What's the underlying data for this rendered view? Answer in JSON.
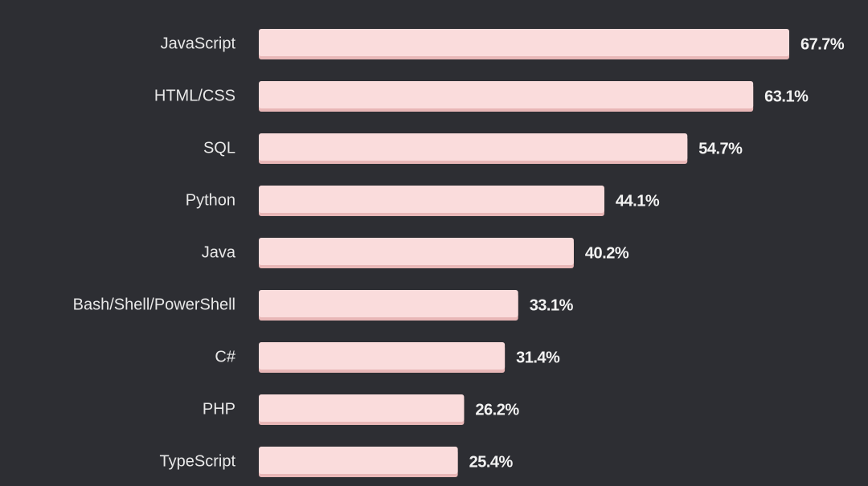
{
  "colors": {
    "background": "#2d2e33",
    "bar_fill": "#fadcdc",
    "bar_shadow": "#e8b7b7"
  },
  "chart_data": {
    "type": "bar",
    "orientation": "horizontal",
    "categories": [
      "JavaScript",
      "HTML/CSS",
      "SQL",
      "Python",
      "Java",
      "Bash/Shell/PowerShell",
      "C#",
      "PHP",
      "TypeScript"
    ],
    "values": [
      67.7,
      63.1,
      54.7,
      44.1,
      40.2,
      33.1,
      31.4,
      26.2,
      25.4
    ],
    "value_labels": [
      "67.7%",
      "63.1%",
      "54.7%",
      "44.1%",
      "40.2%",
      "33.1%",
      "31.4%",
      "26.2%",
      "25.4%"
    ],
    "unit": "%",
    "xlim": [
      0,
      67.7
    ],
    "grid": false,
    "legend": "none"
  }
}
